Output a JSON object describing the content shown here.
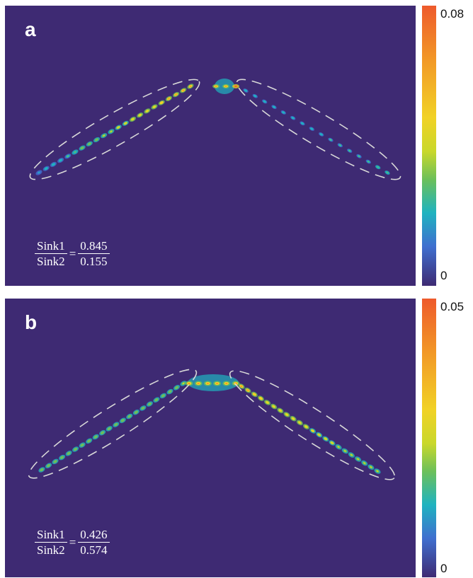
{
  "panels": [
    {
      "letter": "a",
      "ratio": {
        "num_left": "Sink1",
        "den_left": "Sink2",
        "eq": "=",
        "num_right": "0.845",
        "den_right": "0.155"
      },
      "colorbar": {
        "max": "0.08",
        "min": "0"
      }
    },
    {
      "letter": "b",
      "ratio": {
        "num_left": "Sink1",
        "den_left": "Sink2",
        "eq": "=",
        "num_right": "0.426",
        "den_right": "0.574"
      },
      "colorbar": {
        "max": "0.05",
        "min": "0"
      }
    }
  ],
  "colors": {
    "background": "#3e2a73",
    "colormap": [
      "#3e2a73",
      "#3f6fcf",
      "#1fb3c0",
      "#6cc05a",
      "#c9d82b",
      "#f1d225",
      "#f29a26",
      "#ee5a2c"
    ],
    "ellipse_outline": "#d8d8d8"
  }
}
